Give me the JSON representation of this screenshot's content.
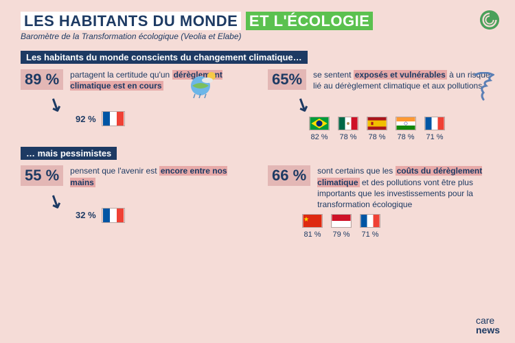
{
  "colors": {
    "background": "#f5dcd7",
    "navy": "#1d3a63",
    "green": "#5bc14f",
    "mauve_box": "#e3b7b5",
    "mauve_hl": "#e7a9a8",
    "white": "#ffffff",
    "swirl": "#4aa05a"
  },
  "title": {
    "part1": "LES HABITANTS DU MONDE",
    "part2": "ET L'ÉCOLOGIE"
  },
  "subtitle": "Baromètre de la Transformation écologique (Veolia et Elabe)",
  "section1": {
    "header": "Les habitants du monde conscients du changement climatique…",
    "left": {
      "pct": "89 %",
      "text_before": "partagent la certitude qu'un ",
      "hl": "dérèglement climatique est en cours",
      "france_pct": "92 %"
    },
    "right": {
      "pct": "65%",
      "text_a": "se sentent ",
      "hl": "exposés et vulnérables",
      "text_b": " à un risque lié au dérèglement climatique et aux pollutions",
      "flags": [
        {
          "country": "brazil",
          "pct": "82 %"
        },
        {
          "country": "mexico",
          "pct": "78 %"
        },
        {
          "country": "spain",
          "pct": "78 %"
        },
        {
          "country": "india",
          "pct": "78 %"
        },
        {
          "country": "france",
          "pct": "71 %"
        }
      ]
    }
  },
  "section2": {
    "header": "… mais pessimistes",
    "left": {
      "pct": "55 %",
      "text_before": "pensent que l'avenir est ",
      "hl": "encore entre nos mains",
      "france_pct": "32 %"
    },
    "right": {
      "pct": "66 %",
      "text_a": "sont certains que les ",
      "hl": "coûts du dérèglement climatique",
      "text_b": " et des pollutions vont être plus importants que les investissements pour la transformation écologique",
      "flags": [
        {
          "country": "china",
          "pct": "81 %"
        },
        {
          "country": "indonesia",
          "pct": "79 %"
        },
        {
          "country": "france",
          "pct": "71 %"
        }
      ]
    }
  },
  "logo": {
    "line1": "care",
    "line2": "news"
  },
  "fonts": {
    "title": 22,
    "subtitle": 12,
    "section_header": 13,
    "big_pct": 22,
    "body": 12,
    "flag_pct": 11
  }
}
